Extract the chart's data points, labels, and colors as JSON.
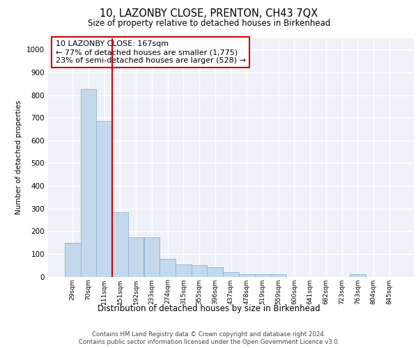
{
  "title1": "10, LAZONBY CLOSE, PRENTON, CH43 7QX",
  "title2": "Size of property relative to detached houses in Birkenhead",
  "xlabel": "Distribution of detached houses by size in Birkenhead",
  "ylabel": "Number of detached properties",
  "categories": [
    "29sqm",
    "70sqm",
    "111sqm",
    "151sqm",
    "192sqm",
    "233sqm",
    "274sqm",
    "315sqm",
    "355sqm",
    "396sqm",
    "437sqm",
    "478sqm",
    "519sqm",
    "559sqm",
    "600sqm",
    "641sqm",
    "682sqm",
    "723sqm",
    "763sqm",
    "804sqm",
    "845sqm"
  ],
  "values": [
    150,
    825,
    685,
    285,
    172,
    172,
    77,
    55,
    50,
    40,
    20,
    10,
    10,
    10,
    0,
    0,
    0,
    0,
    10,
    0,
    0
  ],
  "bar_color": "#c5d9ee",
  "bar_edge_color": "#9ab8d8",
  "vline_index": 3,
  "vline_color": "#cc0000",
  "annotation_text": "10 LAZONBY CLOSE: 167sqm\n← 77% of detached houses are smaller (1,775)\n23% of semi-detached houses are larger (528) →",
  "annotation_box_color": "white",
  "annotation_box_edge": "#cc0000",
  "ylim": [
    0,
    1050
  ],
  "yticks": [
    0,
    100,
    200,
    300,
    400,
    500,
    600,
    700,
    800,
    900,
    1000
  ],
  "footer1": "Contains HM Land Registry data © Crown copyright and database right 2024.",
  "footer2": "Contains public sector information licensed under the Open Government Licence v3.0.",
  "bg_color": "#eef2f8",
  "grid_color": "white"
}
